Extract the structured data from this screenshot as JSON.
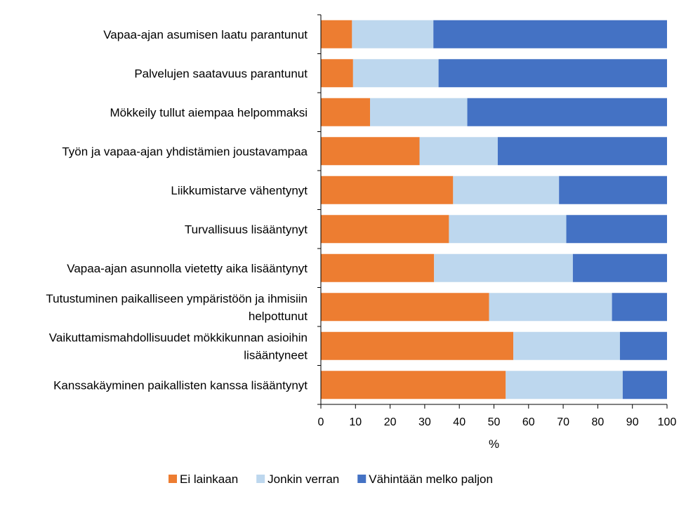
{
  "chart_data": {
    "type": "bar",
    "orientation": "horizontal",
    "stacked": true,
    "categories": [
      [
        "Vapaa-ajan asumisen laatu parantunut"
      ],
      [
        "Palvelujen saatavuus parantunut"
      ],
      [
        "Mökkeily tullut aiempaa helpommaksi"
      ],
      [
        "Työn ja vapaa-ajan yhdistämien joustavampaa"
      ],
      [
        "Liikkumistarve vähentynyt"
      ],
      [
        "Turvallisuus lisääntynyt"
      ],
      [
        "Vapaa-ajan asunnolla vietetty aika lisääntynyt"
      ],
      [
        "Tutustuminen paikalliseen ympäristöön ja ihmisiin",
        "helpottunut"
      ],
      [
        "Vaikuttamismahdollisuudet mökkikunnan asioihin",
        "lisääntyneet"
      ],
      [
        "Kanssakäyminen paikallisten kanssa lisääntynyt"
      ]
    ],
    "series": [
      {
        "name": "Ei lainkaan",
        "color": "#ED7D31",
        "values": [
          9,
          9.3,
          14.2,
          28.5,
          38.2,
          37,
          32.7,
          48.6,
          55.6,
          53.4
        ]
      },
      {
        "name": "Jonkin verran",
        "color": "#BDD7EE",
        "values": [
          23.5,
          24.7,
          28.1,
          22.6,
          30.6,
          33.9,
          40.1,
          35.5,
          30.8,
          33.8
        ]
      },
      {
        "name": "Vähintään melko paljon",
        "color": "#4472C4",
        "values": [
          67.5,
          66,
          57.7,
          48.9,
          31.2,
          29.1,
          27.2,
          15.9,
          13.6,
          12.8
        ]
      }
    ],
    "xlabel": "%",
    "xlim": [
      0,
      100
    ],
    "xticks": [
      "0",
      "10",
      "20",
      "30",
      "40",
      "50",
      "60",
      "70",
      "80",
      "90",
      "100"
    ],
    "grid": false,
    "legend_position": "bottom"
  }
}
